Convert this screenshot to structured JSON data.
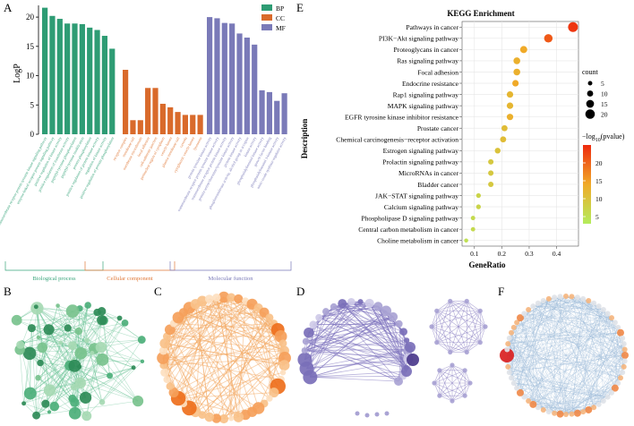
{
  "panels": {
    "A": {
      "label": "A",
      "chart_data": {
        "type": "bar",
        "ylabel": "LogP",
        "ylim": [
          0,
          22
        ],
        "yticks": [
          0,
          5,
          10,
          15,
          20
        ],
        "legend": [
          {
            "name": "BP",
            "color": "#2e9c74"
          },
          {
            "name": "CC",
            "color": "#d96a2b"
          },
          {
            "name": "MF",
            "color": "#7a7ab8"
          }
        ],
        "groups": [
          {
            "name": "Biological process",
            "color": "#2e9c74",
            "text_color": "#3aa57c",
            "categories": [
              "transmembrane receptor protein tyrosine kinase signaling pathway",
              "enzyme-linked receptor protein signaling pathway",
              "positive regulation of kinase activity",
              "positive regulation of transferase activity",
              "peptidyl-tyrosine phosphorylation",
              "peptidyl-tyrosine modification",
              "protein phosphorylation",
              "positive regulation of protein kinase activity",
              "regulation of kinase activity",
              "positive regulation of protein phosphorylation"
            ],
            "values": [
              21.6,
              20.2,
              19.7,
              18.9,
              18.9,
              18.8,
              18.2,
              17.8,
              16.8,
              14.6
            ]
          },
          {
            "name": "Cellular component",
            "color": "#d96a2b",
            "text_color": "#e07a3a",
            "categories": [
              "receptor complex",
              "membrane raft",
              "membrane microdomain",
              "focal adhesion",
              "cell-substrate junction",
              "perinuclear region of cytoplasm",
              "vesicle lumen",
              "plasma membrane raft",
              "caveola",
              "cytoplasmic vesicle lumen",
              "lysosome"
            ],
            "values": [
              11.0,
              2.4,
              2.4,
              7.9,
              7.9,
              5.2,
              4.6,
              3.8,
              3.3,
              3.3,
              3.3
            ]
          },
          {
            "name": "Molecular function",
            "color": "#7a7ab8",
            "text_color": "#7a7ab8",
            "categories": [
              "protein tyrosine kinase activity",
              "transmembrane receptor protein tyrosine kinase activity",
              "transmembrane receptor protein kinase activity",
              "protein serine/threonine/tyrosine kinase activity",
              "protein kinase activity",
              "phosphotransferase activity, alcohol group as acceptor",
              "kinase activity",
              "phosphatidylinositol kinase activity",
              "growth factor binding",
              "phosphatidylinositol 3-kinase activity",
              "nitric-oxide synthase regulator activity"
            ],
            "values": [
              20.0,
              19.8,
              19.0,
              18.9,
              17.2,
              16.5,
              15.3,
              7.5,
              7.2,
              5.7,
              7.0
            ]
          }
        ]
      }
    },
    "E": {
      "label": "E",
      "chart_data": {
        "type": "scatter",
        "title": "KEGG Enrichment",
        "xlabel": "GeneRatio",
        "ylabel": "Description",
        "xlim": [
          0.055,
          0.48
        ],
        "xticks": [
          0.1,
          0.2,
          0.3,
          0.4
        ],
        "categories": [
          "Pathways in cancer",
          "PI3K−Akt signaling pathway",
          "Proteoglycans in cancer",
          "Ras signaling pathway",
          "Focal adhesion",
          "Endocrine resistance",
          "Rap1 signaling pathway",
          "MAPK signaling pathway",
          "EGFR tyrosine kinase inhibitor resistance",
          "Prostate cancer",
          "Chemical carcinogenesis−receptor activation",
          "Estrogen signaling pathway",
          "Prolactin signaling pathway",
          "MicroRNAs in cancer",
          "Bladder cancer",
          "JAK−STAT signaling pathway",
          "Calcium signaling pathway",
          "Phospholipase D signaling pathway",
          "Central carbon metabolism in cancer",
          "Choline metabolism in cancer"
        ],
        "gene_ratio": [
          0.46,
          0.37,
          0.28,
          0.255,
          0.255,
          0.25,
          0.23,
          0.23,
          0.23,
          0.21,
          0.205,
          0.185,
          0.16,
          0.16,
          0.16,
          0.115,
          0.115,
          0.095,
          0.095,
          0.07
        ],
        "count": [
          21,
          17,
          13,
          12,
          12,
          11,
          11,
          11,
          11,
          10,
          10,
          9,
          8,
          8,
          8,
          6,
          6,
          5,
          5,
          4
        ],
        "neg_log10_p": [
          24,
          21,
          14,
          13,
          13,
          14,
          12,
          12,
          13,
          11,
          11,
          10,
          9,
          9,
          9,
          7,
          7,
          6,
          6,
          5
        ],
        "size_legend": {
          "title": "count",
          "values": [
            5,
            10,
            15,
            20
          ]
        },
        "color_legend": {
          "title_prefix": "−log",
          "title_sub": "10",
          "title_suffix": "(pvalue)",
          "ticks": [
            20,
            15,
            10,
            5
          ],
          "range": [
            3,
            25
          ],
          "color_low": "#b4ec5c",
          "color_high": "#ee2a0e"
        }
      }
    },
    "B": {
      "label": "B",
      "network": {
        "palette": [
          "#2e8b57",
          "#4caf79",
          "#78c28d",
          "#a6d9b3"
        ],
        "edge_color": "#5fbf8f"
      }
    },
    "C": {
      "label": "C",
      "network": {
        "palette": [
          "#ee6f1c",
          "#f5a05a",
          "#f9c189",
          "#fde0c0"
        ],
        "edge_color": "#f4a860"
      }
    },
    "D": {
      "label": "D",
      "network": {
        "palette": [
          "#4b3a8c",
          "#7a6fb8",
          "#a9a3d4",
          "#cfcbe8"
        ],
        "edge_color": "#7e73bd"
      }
    },
    "F": {
      "label": "F",
      "network": {
        "palette": [
          "#d92020",
          "#f08a4a",
          "#f5b680",
          "#dfe3e8"
        ],
        "edge_color": "#9ab8d8"
      }
    }
  }
}
